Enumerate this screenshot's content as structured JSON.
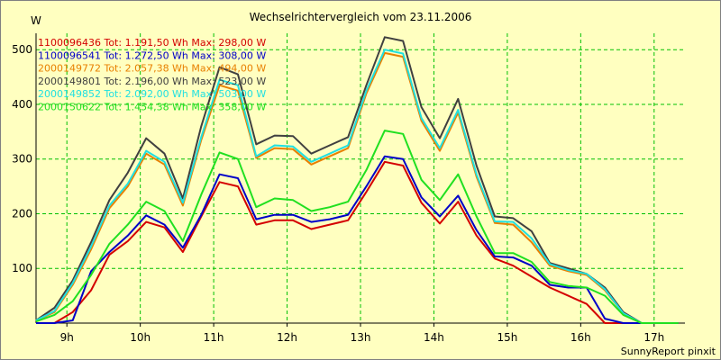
{
  "chart_data": {
    "type": "line",
    "title": "Wechselrichtervergleich vom 23.11.2006",
    "ylabel": "W",
    "xlabel": "",
    "ylim": [
      0,
      530
    ],
    "xlim": [
      8.58,
      17.42
    ],
    "yticks": [
      100,
      200,
      300,
      400,
      500
    ],
    "xticks": [
      9,
      10,
      11,
      12,
      13,
      14,
      15,
      16,
      17
    ],
    "xtick_labels": [
      "9h",
      "10h",
      "11h",
      "12h",
      "13h",
      "14h",
      "15h",
      "16h",
      "17h"
    ],
    "grid": true,
    "grid_color": "#00c000",
    "background": "#ffffc0",
    "legend_position": "top-left",
    "x": [
      8.58,
      8.83,
      9.08,
      9.33,
      9.58,
      9.83,
      10.08,
      10.33,
      10.58,
      10.83,
      11.08,
      11.33,
      11.58,
      11.83,
      12.08,
      12.33,
      12.58,
      12.83,
      13.08,
      13.33,
      13.58,
      13.83,
      14.08,
      14.33,
      14.58,
      14.83,
      15.08,
      15.33,
      15.58,
      15.83,
      16.08,
      16.33,
      16.58,
      16.83,
      17.08,
      17.33
    ],
    "series": [
      {
        "name": "1100096436",
        "legend": "1100096436 Tot: 1.191,50 Wh Max: 298,00 W",
        "color": "#d40000",
        "values": [
          0,
          0,
          20,
          60,
          125,
          150,
          185,
          175,
          130,
          195,
          258,
          250,
          180,
          188,
          188,
          172,
          180,
          188,
          240,
          295,
          288,
          220,
          182,
          222,
          160,
          118,
          105,
          85,
          65,
          50,
          35,
          0,
          0,
          0,
          0,
          0
        ]
      },
      {
        "name": "1100096541",
        "legend": "1100096541 Tot: 1.272,50 Wh Max: 308,00 W",
        "color": "#0000c8",
        "values": [
          0,
          0,
          5,
          95,
          130,
          160,
          197,
          180,
          138,
          198,
          272,
          265,
          190,
          198,
          198,
          185,
          190,
          198,
          250,
          305,
          300,
          230,
          195,
          233,
          170,
          122,
          120,
          105,
          70,
          65,
          65,
          8,
          0,
          0,
          0,
          0
        ]
      },
      {
        "name": "2000149772",
        "legend": "2000149772 Tot: 2.057,38 Wh Max: 494,00 W",
        "color": "#e88000",
        "values": [
          5,
          20,
          70,
          135,
          210,
          250,
          310,
          290,
          215,
          335,
          435,
          425,
          302,
          320,
          318,
          290,
          305,
          320,
          420,
          494,
          487,
          370,
          315,
          385,
          268,
          183,
          180,
          148,
          105,
          95,
          88,
          60,
          18,
          0,
          0,
          0
        ]
      },
      {
        "name": "2000149801",
        "legend": "2000149801 Tot: 2.196,00 Wh Max: 523,00 W",
        "color": "#404040",
        "values": [
          5,
          28,
          78,
          148,
          225,
          275,
          338,
          310,
          228,
          360,
          468,
          455,
          327,
          343,
          342,
          310,
          325,
          340,
          435,
          523,
          516,
          395,
          338,
          410,
          288,
          195,
          192,
          168,
          110,
          100,
          90,
          65,
          20,
          0,
          0,
          0
        ]
      },
      {
        "name": "2000149852",
        "legend": "2000149852 Tot: 2.092,00 Wh Max: 503,00 W",
        "color": "#20e0e0",
        "values": [
          5,
          22,
          73,
          140,
          215,
          255,
          315,
          295,
          220,
          340,
          445,
          435,
          305,
          325,
          323,
          295,
          310,
          325,
          425,
          500,
          493,
          375,
          320,
          390,
          272,
          186,
          185,
          155,
          108,
          97,
          90,
          62,
          18,
          0,
          0,
          0
        ]
      },
      {
        "name": "2000150622",
        "legend": "2000150622 Tot: 1.454,38 Wh Max: 358,00 W",
        "color": "#20e020",
        "values": [
          3,
          15,
          40,
          88,
          145,
          180,
          222,
          205,
          150,
          235,
          312,
          300,
          212,
          228,
          225,
          205,
          212,
          222,
          280,
          352,
          346,
          262,
          225,
          272,
          195,
          128,
          128,
          112,
          75,
          68,
          65,
          50,
          15,
          0,
          0,
          0
        ]
      }
    ]
  },
  "footer": "SunnyReport pinxit"
}
